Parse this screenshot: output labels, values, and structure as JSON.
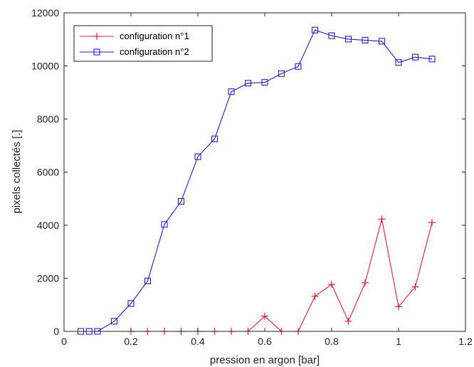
{
  "chart_data": {
    "type": "line",
    "xlabel": "pression en argon [bar]",
    "ylabel": "pixels collectés [.]",
    "xlim": [
      0,
      1.2
    ],
    "ylim": [
      0,
      12000
    ],
    "xticks": [
      0,
      0.2,
      0.4,
      0.6,
      0.8,
      1,
      1.2
    ],
    "xtick_labels": [
      "0",
      "0.2",
      "0.4",
      "0.6",
      "0.8",
      "1",
      "1.2"
    ],
    "yticks": [
      0,
      2000,
      4000,
      6000,
      8000,
      10000,
      12000
    ],
    "ytick_labels": [
      "0",
      "2000",
      "4000",
      "6000",
      "8000",
      "10000",
      "12000"
    ],
    "grid": false,
    "legend_position": "top-left",
    "series": [
      {
        "name": "configuration n°1",
        "color": "#e8242b",
        "marker": "plus",
        "x": [
          0.2,
          0.25,
          0.3,
          0.35,
          0.4,
          0.45,
          0.5,
          0.55,
          0.6,
          0.65,
          0.7,
          0.75,
          0.8,
          0.85,
          0.9,
          0.95,
          1.0,
          1.05,
          1.1
        ],
        "y": [
          0,
          0,
          0,
          0,
          0,
          0,
          0,
          0,
          570,
          0,
          0,
          1320,
          1770,
          380,
          1830,
          4230,
          930,
          1680,
          4100
        ]
      },
      {
        "name": "configuration n°2",
        "color": "#2323e6",
        "marker": "square",
        "x": [
          0.05,
          0.075,
          0.1,
          0.15,
          0.2,
          0.25,
          0.3,
          0.35,
          0.4,
          0.45,
          0.5,
          0.55,
          0.6,
          0.65,
          0.7,
          0.75,
          0.8,
          0.85,
          0.9,
          0.95,
          1.0,
          1.05,
          1.1
        ],
        "y": [
          0,
          0,
          0,
          380,
          1050,
          1900,
          4030,
          4900,
          6580,
          7250,
          9030,
          9350,
          9380,
          9710,
          9980,
          11350,
          11140,
          11010,
          10970,
          10930,
          10130,
          10330,
          10260
        ]
      }
    ]
  }
}
